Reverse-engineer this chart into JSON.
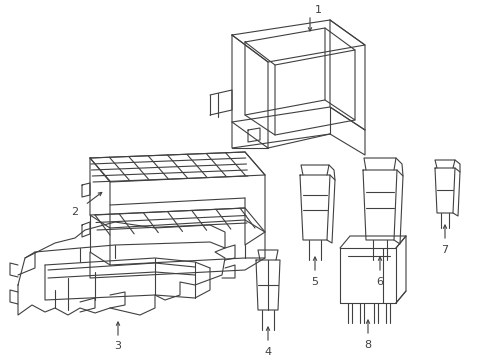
{
  "background_color": "#ffffff",
  "line_color": "#404040",
  "line_width": 0.8,
  "figsize": [
    4.89,
    3.6
  ],
  "dpi": 100
}
